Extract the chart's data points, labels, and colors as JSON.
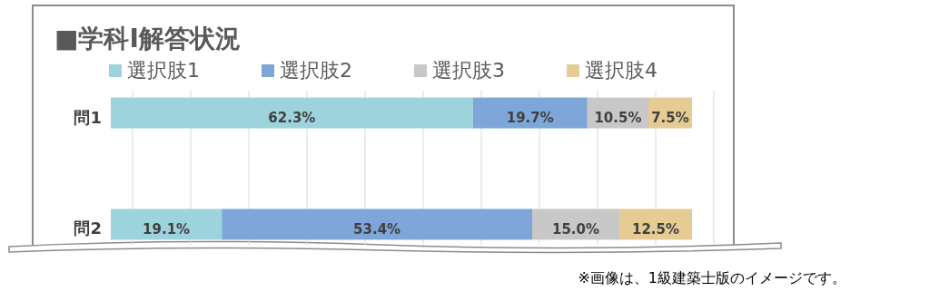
{
  "chart_data": {
    "type": "bar",
    "orientation": "horizontal",
    "stacked": true,
    "title": "■学科Ⅰ解答状況",
    "categories": [
      "問1",
      "問2"
    ],
    "series": [
      {
        "name": "選択肢1",
        "color": "#9dd3dc",
        "values": [
          62.3,
          19.1
        ],
        "value_labels": [
          "62.3%",
          "19.1%"
        ]
      },
      {
        "name": "選択肢2",
        "color": "#7ea6d8",
        "values": [
          19.7,
          53.4
        ],
        "value_labels": [
          "19.7%",
          "53.4%"
        ]
      },
      {
        "name": "選択肢3",
        "color": "#c8c8c8",
        "values": [
          10.5,
          15.0
        ],
        "value_labels": [
          "10.5%",
          "15.0%"
        ]
      },
      {
        "name": "選択肢4",
        "color": "#e6cc94",
        "values": [
          7.5,
          12.5
        ],
        "value_labels": [
          "7.5%",
          "12.5%"
        ]
      }
    ],
    "grid": "x",
    "legend": "top",
    "tick_labels": "y",
    "annotations": [
      "※画像は、1級建築士版のイメージです。"
    ]
  }
}
